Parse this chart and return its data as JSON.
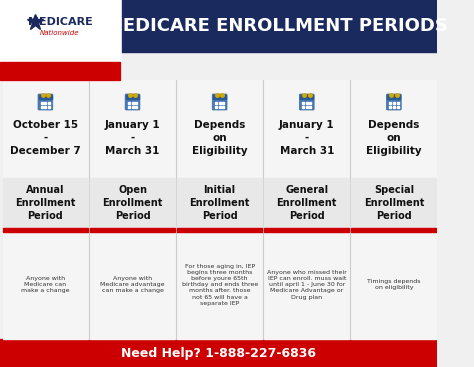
{
  "title": "MEDICARE ENROLLMENT PERIODS",
  "bg_color": "#f0f0f0",
  "header_bg": "#1a2a5e",
  "header_text_color": "#ffffff",
  "footer_bg": "#cc0000",
  "footer_text": "Need Help? 1-888-227-6836",
  "footer_text_color": "#ffffff",
  "logo_area_bg": "#ffffff",
  "card_bg": "#f5f5f5",
  "red_accent": "#cc0000",
  "dark_blue": "#1a2a5e",
  "columns": [
    {
      "date": "October 15\n-\nDecember 7",
      "period": "Annual\nEnrollment\nPeriod",
      "desc": "Anyone with\nMedicare can\nmake a change"
    },
    {
      "date": "January 1\n-\nMarch 31",
      "period": "Open\nEnrollment\nPeriod",
      "desc": "Anyone with\nMedicare advantage\ncan make a change"
    },
    {
      "date": "Depends\non\nEligibility",
      "period": "Initial\nEnrollment\nPeriod",
      "desc": "For those aging in, IEP\nbegins three months\nbefore youre 65th\nbirthday and ends three\nmonths after. those\nnot 65 will have a\nseparate IEP"
    },
    {
      "date": "January 1\n-\nMarch 31",
      "period": "General\nEnrollment\nPeriod",
      "desc": "Anyone who missed their\nIEP can enroll. muss wait\nuntil april 1 - June 30 for\nMedicare Advantage or\nDrug plan"
    },
    {
      "date": "Depends\non\nEligibility",
      "period": "Special\nEnrollment\nPeriod",
      "desc": "Timings depends\non eligibility"
    }
  ]
}
